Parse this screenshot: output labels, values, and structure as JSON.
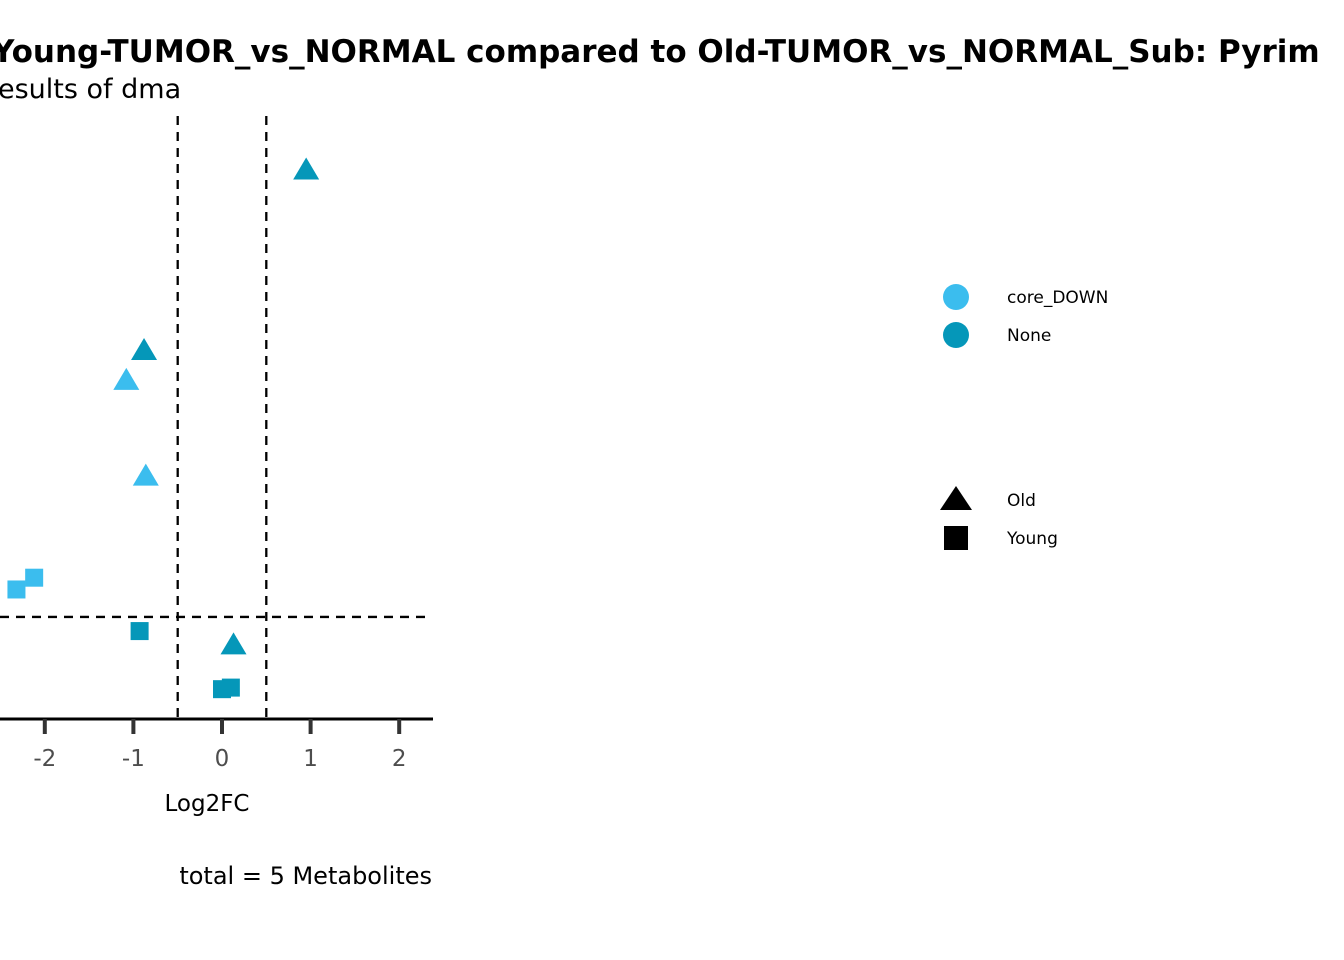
{
  "chart_data": {
    "type": "scatter",
    "title": "Young-TUMOR_vs_NORMAL compared to Old-TUMOR_vs_NORMAL_Sub: Pyrim",
    "subtitle": "esults of dma",
    "xlabel": "Log2FC",
    "ylabel": "",
    "caption": "total = 5 Metabolites",
    "x_ticks": [
      -2,
      -1,
      0,
      1,
      2
    ],
    "x_tick_labels": [
      "-2",
      "-1",
      "0",
      "1",
      "2"
    ],
    "xlim": [
      -2.5,
      2.4
    ],
    "threshold_lines": {
      "x": [
        -0.5,
        0.5
      ],
      "y": 1.3
    },
    "colors": {
      "core_DOWN": "#3bbdee",
      "None": "#0597b9"
    },
    "shapes": {
      "Old": "triangle",
      "Young": "square"
    },
    "legend_position": "right",
    "legend_color": {
      "entries": [
        "core_DOWN",
        "None"
      ]
    },
    "legend_shape": {
      "entries": [
        "Old",
        "Young"
      ]
    },
    "points": [
      {
        "x": 0.95,
        "y": 7.0,
        "group": "None",
        "shape": "Old"
      },
      {
        "x": -0.88,
        "y": 4.7,
        "group": "None",
        "shape": "Old"
      },
      {
        "x": -1.08,
        "y": 4.32,
        "group": "core_DOWN",
        "shape": "Old"
      },
      {
        "x": -0.86,
        "y": 3.1,
        "group": "core_DOWN",
        "shape": "Old"
      },
      {
        "x": 0.13,
        "y": 0.95,
        "group": "None",
        "shape": "Old"
      },
      {
        "x": -2.12,
        "y": 1.8,
        "group": "core_DOWN",
        "shape": "Young"
      },
      {
        "x": -2.32,
        "y": 1.65,
        "group": "core_DOWN",
        "shape": "Young"
      },
      {
        "x": -0.93,
        "y": 1.12,
        "group": "None",
        "shape": "Young"
      },
      {
        "x": 0.1,
        "y": 0.4,
        "group": "None",
        "shape": "Young"
      },
      {
        "x": 0.0,
        "y": 0.38,
        "group": "None",
        "shape": "Young"
      }
    ]
  }
}
